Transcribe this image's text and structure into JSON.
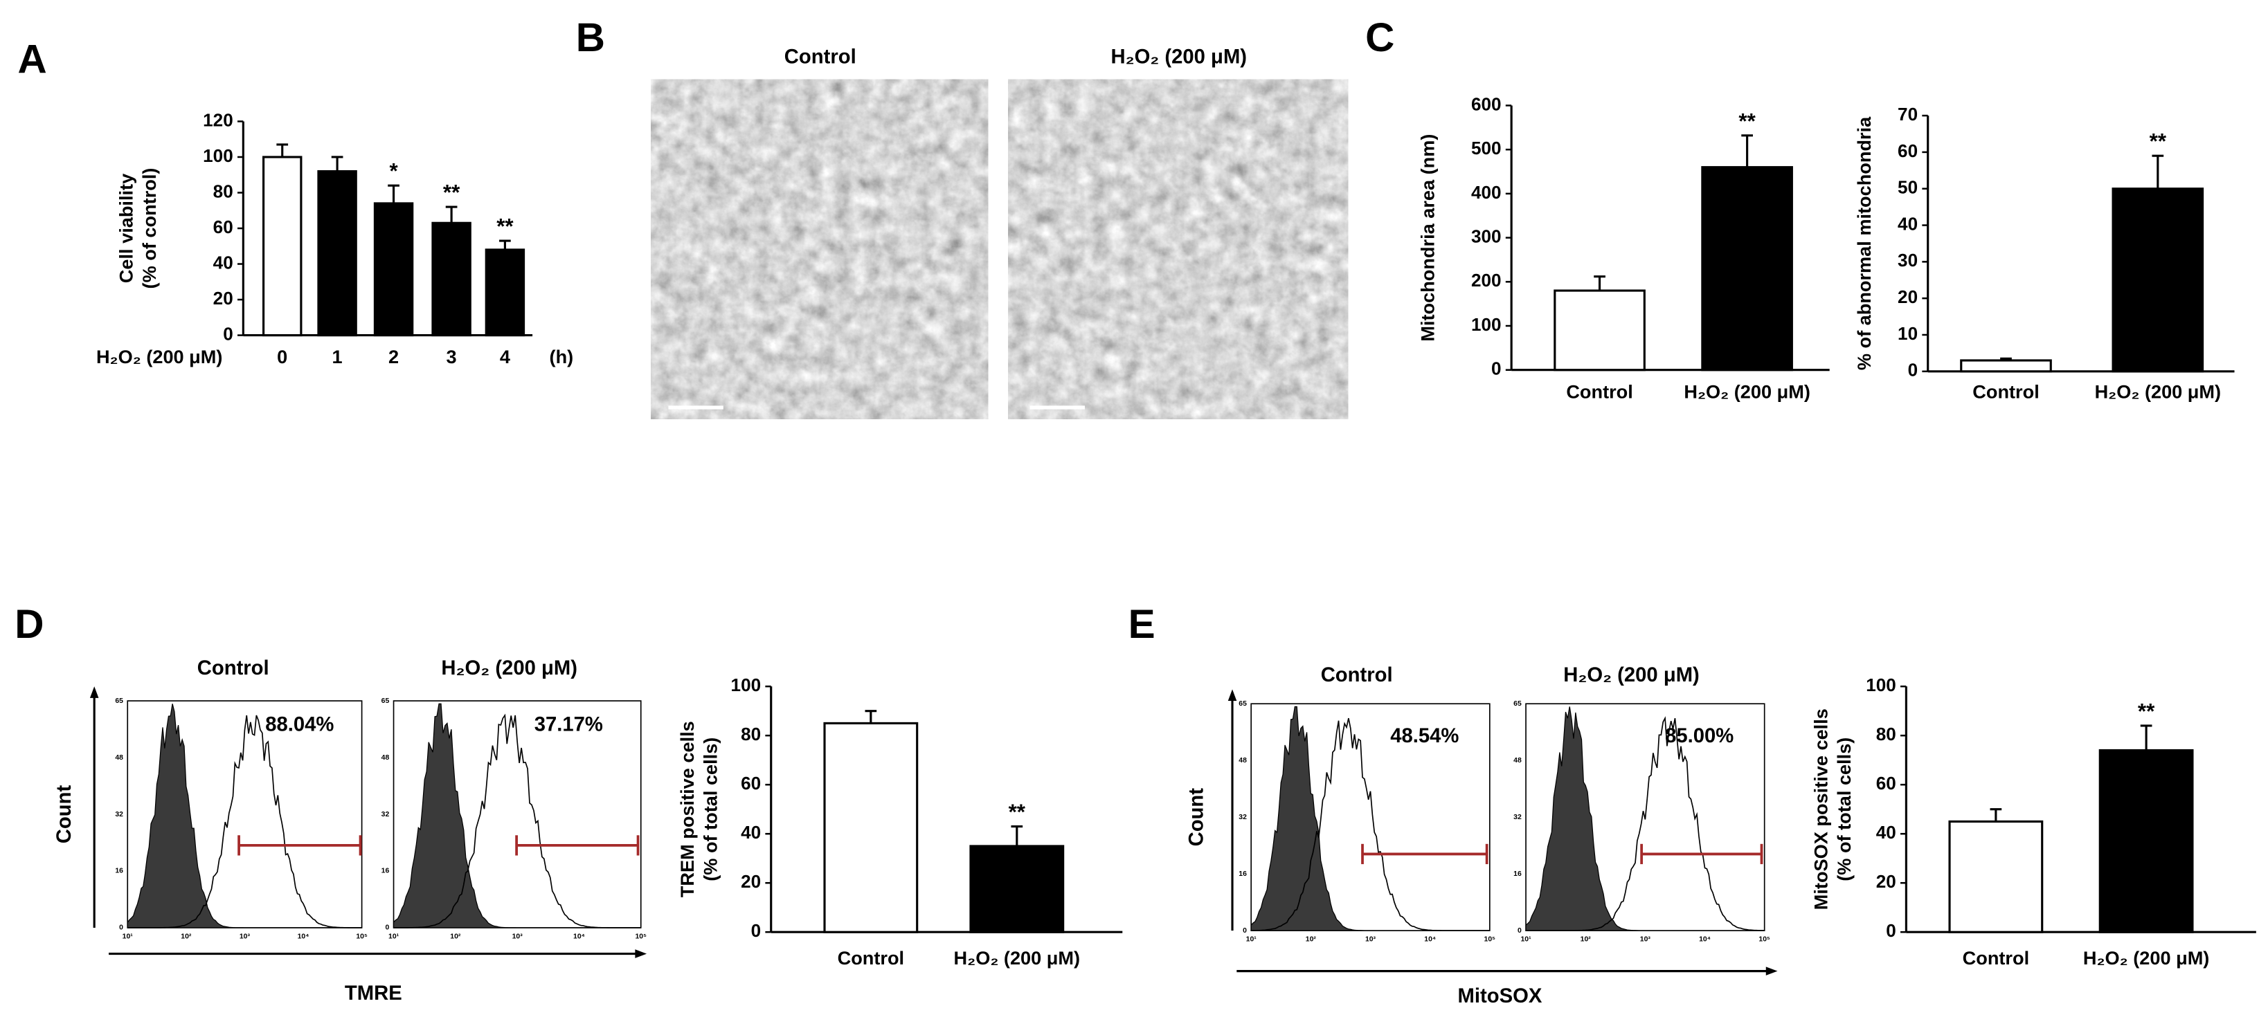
{
  "panel_labels": [
    "A",
    "B",
    "C",
    "D",
    "E"
  ],
  "chart_data": [
    {
      "type": "bar",
      "categories": [
        "0",
        "1",
        "2",
        "3",
        "4"
      ],
      "values": [
        100,
        92,
        74,
        63,
        48
      ],
      "errors": [
        7,
        8,
        10,
        9,
        5
      ],
      "annotations": [
        null,
        null,
        "*",
        "**",
        "**"
      ],
      "colors": [
        "#ffffff",
        "#000000",
        "#000000",
        "#000000",
        "#000000"
      ],
      "ylabel": [
        "Cell viability",
        "(% of control)"
      ],
      "xlabel": "H₂O₂ (200 μM)",
      "xunit": "(h)",
      "ylim": [
        0,
        120
      ],
      "yticks": [
        0,
        20,
        40,
        60,
        80,
        100,
        120
      ]
    },
    {
      "type": "bar",
      "categories": [
        "Control",
        "H₂O₂ (200 μM)"
      ],
      "values": [
        180,
        460
      ],
      "errors": [
        32,
        72
      ],
      "annotations": [
        null,
        "**"
      ],
      "colors": [
        "#ffffff",
        "#000000"
      ],
      "ylabel": "Mitochondria area (nm)",
      "ylim": [
        0,
        600
      ],
      "yticks": [
        0,
        100,
        200,
        300,
        400,
        500,
        600
      ]
    },
    {
      "type": "bar",
      "categories": [
        "Control",
        "H₂O₂ (200 μM)"
      ],
      "values": [
        3,
        50
      ],
      "errors": [
        0.5,
        9
      ],
      "annotations": [
        null,
        "**"
      ],
      "colors": [
        "#ffffff",
        "#000000"
      ],
      "ylabel": "% of abnormal mitochondria",
      "ylim": [
        0,
        70
      ],
      "yticks": [
        0,
        10,
        20,
        30,
        40,
        50,
        60,
        70
      ]
    },
    {
      "type": "bar",
      "categories": [
        "Control",
        "H₂O₂ (200 μM)"
      ],
      "values": [
        85,
        35
      ],
      "errors": [
        5,
        8
      ],
      "annotations": [
        null,
        "**"
      ],
      "colors": [
        "#ffffff",
        "#000000"
      ],
      "ylabel": [
        "TREM positive cells",
        "(% of total cells)"
      ],
      "ylim": [
        0,
        100
      ],
      "yticks": [
        0,
        20,
        40,
        60,
        80,
        100
      ]
    },
    {
      "type": "bar",
      "categories": [
        "Control",
        "H₂O₂ (200 μM)"
      ],
      "values": [
        45,
        74
      ],
      "errors": [
        5,
        10
      ],
      "annotations": [
        null,
        "**"
      ],
      "colors": [
        "#ffffff",
        "#000000"
      ],
      "ylabel": [
        "MitoSOX positive cells",
        "(% of total cells)"
      ],
      "ylim": [
        0,
        100
      ],
      "yticks": [
        0,
        20,
        40,
        60,
        80,
        100
      ]
    }
  ],
  "em_images": {
    "titles": [
      "Control",
      "H₂O₂ (200 μM)"
    ]
  },
  "flow": [
    {
      "titles": [
        "Control",
        "H₂O₂ (200 μM)"
      ],
      "percentages": [
        "88.04%",
        "37.17%"
      ],
      "ylabel": "Count",
      "xlabel": "TMRE",
      "yticks": [
        "0",
        "16",
        "32",
        "48",
        "65"
      ],
      "xticks": [
        "10¹",
        "10²",
        "10³",
        "10⁴",
        "10⁵"
      ]
    },
    {
      "titles": [
        "Control",
        "H₂O₂ (200 μM)"
      ],
      "percentages": [
        "48.54%",
        "85.00%"
      ],
      "ylabel": "Count",
      "xlabel": "MitoSOX",
      "yticks": [
        "0",
        "16",
        "32",
        "48",
        "65"
      ],
      "xticks": [
        "10¹",
        "10²",
        "10³",
        "10⁴",
        "10⁵"
      ]
    }
  ]
}
